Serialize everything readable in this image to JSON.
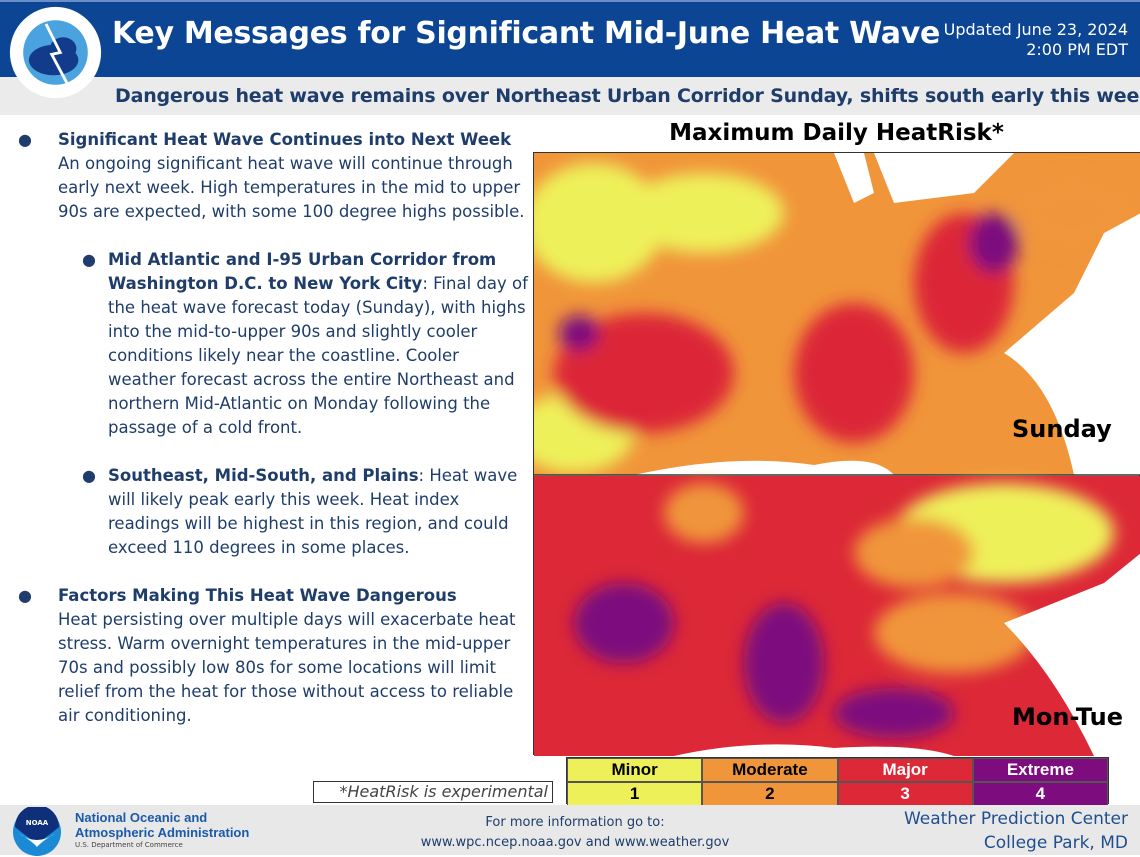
{
  "header": {
    "title": "Key Messages for Significant Mid-June Heat Wave",
    "updated_line1": "Updated June 23, 2024",
    "updated_line2": "2:00 PM EDT",
    "logo_text": "NATIONAL WEATHER SERVICE"
  },
  "subtitle": "Dangerous heat wave remains over Northeast Urban Corridor Sunday, shifts south early this week",
  "bullets": [
    {
      "heading": "Significant Heat Wave Continues into Next Week",
      "text": "An ongoing significant heat wave will continue through early next week. High temperatures in the mid to upper 90s are expected, with some 100 degree highs possible."
    },
    {
      "heading": "Mid Atlantic and I-95 Urban Corridor from Washington D.C. to New York City",
      "text": ": Final day of the heat wave forecast today (Sunday), with highs into the mid-to-upper 90s and slightly cooler conditions likely near the coastline. Cooler weather forecast across the entire Northeast and northern Mid-Atlantic on Monday following the passage of a cold front."
    },
    {
      "heading": "Southeast, Mid-South, and Plains",
      "text": ": Heat wave will likely peak early this week. Heat index readings will be highest in this region, and could exceed 110 degrees in some places."
    },
    {
      "heading": "Factors Making This Heat Wave Dangerous",
      "text": "Heat persisting over multiple days will exacerbate heat stress. Warm overnight temperatures in the mid-upper 70s and possibly low 80s for some locations will limit relief from the heat for those without access to reliable air conditioning."
    }
  ],
  "map": {
    "title": "Maximum Daily HeatRisk*",
    "panel1_label": "Sunday",
    "panel2_label": "Mon-Tue",
    "note": "*HeatRisk is experimental"
  },
  "legend": [
    {
      "label": "Minor",
      "level": "1",
      "color": "#eef05a"
    },
    {
      "label": "Moderate",
      "level": "2",
      "color": "#f0953a"
    },
    {
      "label": "Major",
      "level": "3",
      "color": "#dc2837"
    },
    {
      "label": "Extreme",
      "level": "4",
      "color": "#7d0c7e"
    }
  ],
  "footer": {
    "noaa_line1": "National Oceanic and",
    "noaa_line2": "Atmospheric Administration",
    "noaa_dept": "U.S. Department of Commerce",
    "noaa_logo_text": "NOAA",
    "more_info_line1": "For more information go to:",
    "more_info_line2": "www.wpc.ncep.noaa.gov and www.weather.gov",
    "wpc_line1": "Weather Prediction Center",
    "wpc_line2": "College Park, MD"
  }
}
